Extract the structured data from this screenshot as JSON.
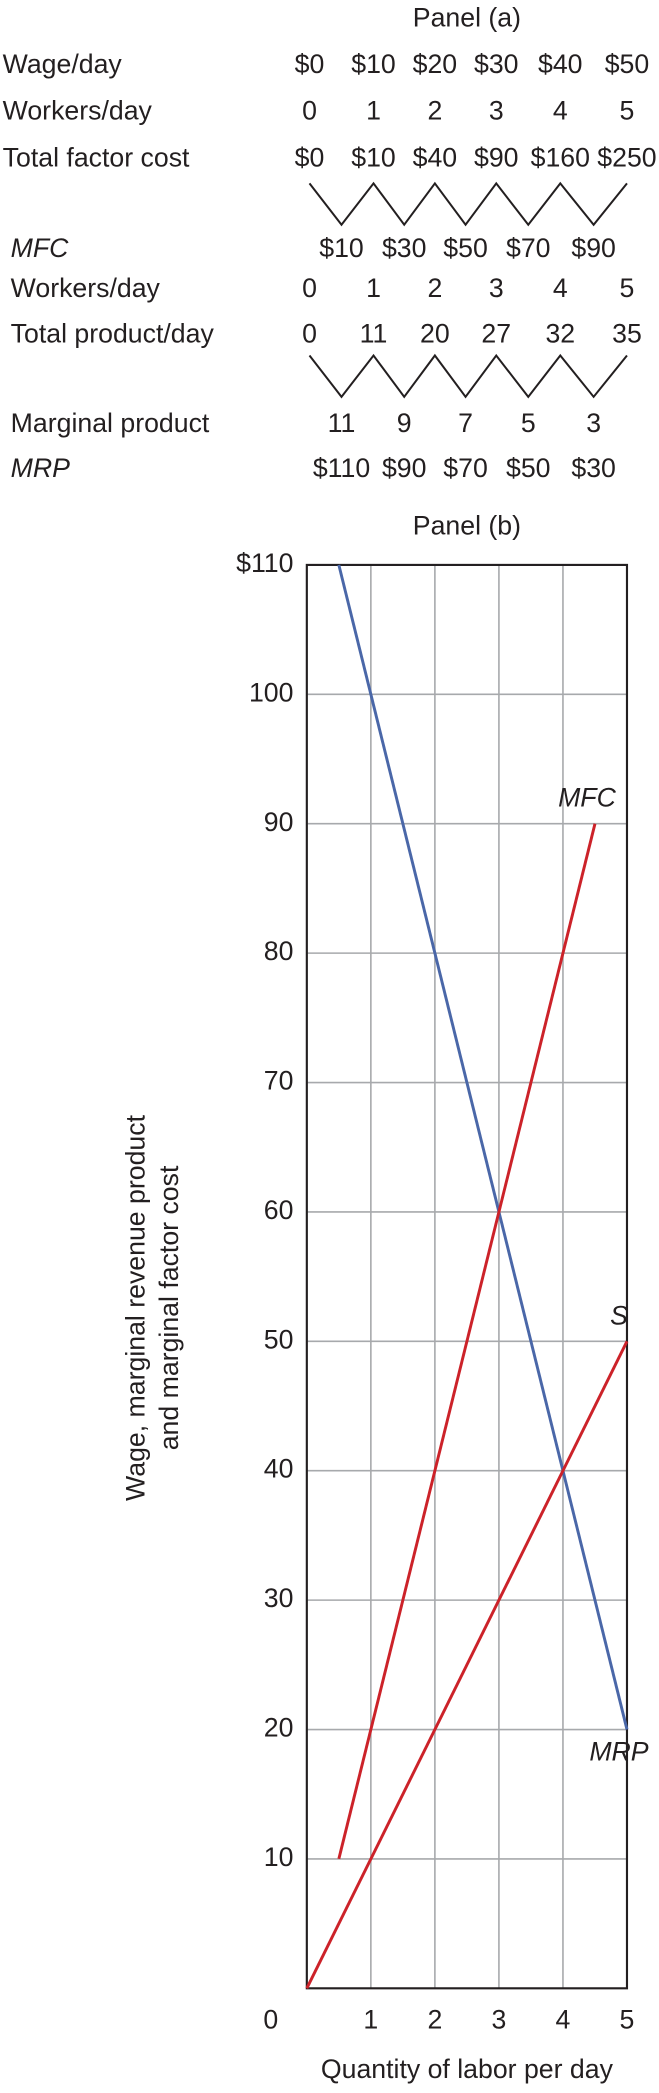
{
  "panel_a": {
    "title": "Panel (a)",
    "rows": [
      {
        "label": "Wage/day",
        "cells": [
          "$0",
          "$10",
          "$20",
          "$30",
          "$40",
          "$50"
        ]
      },
      {
        "label": "Workers/day",
        "cells": [
          "0",
          "1",
          "2",
          "3",
          "4",
          "5"
        ]
      },
      {
        "label": "Total factor cost",
        "cells": [
          "$0",
          "$10",
          "$40",
          "$90",
          "$160",
          "$250"
        ]
      },
      {
        "label": "MFC",
        "cells": [
          "$10",
          "$30",
          "$50",
          "$70",
          "$90"
        ]
      },
      {
        "label": "Workers/day",
        "cells": [
          "0",
          "1",
          "2",
          "3",
          "4",
          "5"
        ]
      },
      {
        "label": "Total product/day",
        "cells": [
          "0",
          "11",
          "20",
          "27",
          "32",
          "35"
        ]
      },
      {
        "label": "Marginal product",
        "cells": [
          "11",
          "9",
          "7",
          "5",
          "3"
        ]
      },
      {
        "label": "MRP",
        "cells": [
          "$110",
          "$90",
          "$70",
          "$50",
          "$30"
        ]
      }
    ]
  },
  "chart_data": {
    "type": "line",
    "title": "Panel (b)",
    "xlabel": "Quantity of labor per day",
    "ylabel": [
      "Wage, marginal revenue product",
      "and marginal factor cost"
    ],
    "xlim": [
      0,
      5
    ],
    "ylim": [
      0,
      110
    ],
    "xticks": [
      0,
      1,
      2,
      3,
      4,
      5
    ],
    "yticks": [
      10,
      20,
      30,
      40,
      50,
      60,
      70,
      80,
      90,
      100,
      {
        "value": 110,
        "label": "$110"
      }
    ],
    "grid": true,
    "series": [
      {
        "name": "MRP",
        "color": "#4a67a8",
        "x": [
          0.5,
          5
        ],
        "values": [
          110,
          20
        ]
      },
      {
        "name": "MFC",
        "color": "#cc2229",
        "x": [
          0.5,
          4.5
        ],
        "values": [
          10,
          90
        ]
      },
      {
        "name": "S",
        "color": "#cc2229",
        "x": [
          0,
          5
        ],
        "values": [
          0,
          50
        ]
      }
    ]
  }
}
